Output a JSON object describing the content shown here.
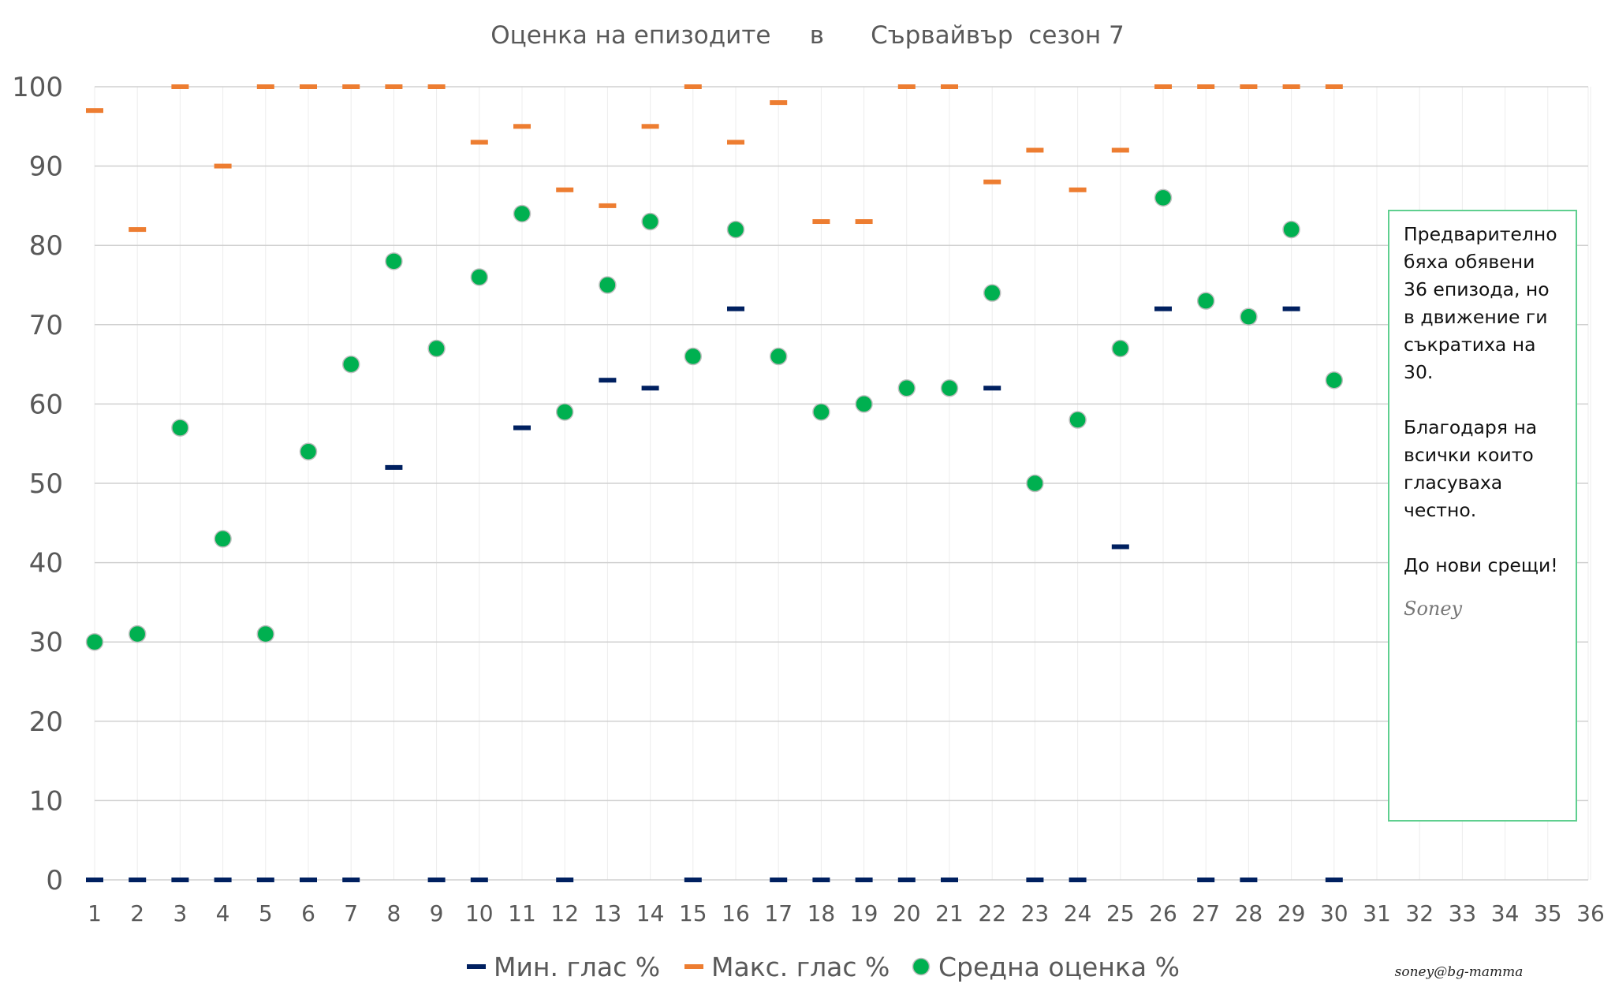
{
  "chart_data": {
    "type": "scatter",
    "title": "Оценка на епизодите     в      Сървайвър  сезон 7",
    "xlabel": "",
    "ylabel": "",
    "categories": [
      "1",
      "2",
      "3",
      "4",
      "5",
      "6",
      "7",
      "8",
      "9",
      "10",
      "11",
      "12",
      "13",
      "14",
      "15",
      "16",
      "17",
      "18",
      "19",
      "20",
      "21",
      "22",
      "23",
      "24",
      "25",
      "26",
      "27",
      "28",
      "29",
      "30",
      "31",
      "32",
      "33",
      "34",
      "35",
      "36"
    ],
    "ylim": [
      0,
      100
    ],
    "yticks": [
      0,
      10,
      20,
      30,
      40,
      50,
      60,
      70,
      80,
      90,
      100
    ],
    "grid": true,
    "legend_position": "bottom",
    "series": [
      {
        "name": "Мин. глас %",
        "marker": "dash",
        "color": "#002060",
        "x": [
          1,
          2,
          3,
          4,
          5,
          6,
          7,
          8,
          9,
          10,
          11,
          12,
          13,
          14,
          15,
          16,
          17,
          18,
          19,
          20,
          21,
          22,
          23,
          24,
          25,
          26,
          27,
          28,
          29,
          30
        ],
        "values": [
          0,
          0,
          0,
          0,
          0,
          0,
          0,
          52,
          0,
          0,
          57,
          0,
          63,
          62,
          0,
          72,
          0,
          0,
          0,
          0,
          0,
          62,
          0,
          0,
          42,
          72,
          0,
          0,
          72,
          0
        ]
      },
      {
        "name": "Макс. глас %",
        "marker": "dash",
        "color": "#ED7D31",
        "x": [
          1,
          2,
          3,
          4,
          5,
          6,
          7,
          8,
          9,
          10,
          11,
          12,
          13,
          14,
          15,
          16,
          17,
          18,
          19,
          20,
          21,
          22,
          23,
          24,
          25,
          26,
          27,
          28,
          29,
          30
        ],
        "values": [
          97,
          82,
          100,
          90,
          100,
          100,
          100,
          100,
          100,
          93,
          95,
          87,
          85,
          95,
          100,
          93,
          98,
          83,
          83,
          100,
          100,
          88,
          92,
          87,
          92,
          100,
          100,
          100,
          100,
          100
        ]
      },
      {
        "name": "Средна оценка %",
        "marker": "circle",
        "color": "#00B050",
        "x": [
          1,
          2,
          3,
          4,
          5,
          6,
          7,
          8,
          9,
          10,
          11,
          12,
          13,
          14,
          15,
          16,
          17,
          18,
          19,
          20,
          21,
          22,
          23,
          24,
          25,
          26,
          27,
          28,
          29,
          30
        ],
        "values": [
          30,
          31,
          57,
          43,
          31,
          54,
          65,
          78,
          67,
          76,
          84,
          59,
          75,
          83,
          66,
          82,
          66,
          59,
          60,
          62,
          62,
          74,
          50,
          58,
          67,
          86,
          73,
          71,
          82,
          63
        ]
      }
    ],
    "annotations": {
      "note": [
        "Предварително бяха обявени 36 епизода, но в движение ги съкратиха на 30.",
        "Благодаря на всички които гласуваха честно.",
        "До нови срещи!"
      ],
      "signature": "Soney",
      "credit": "soney@bg-mamma"
    }
  }
}
